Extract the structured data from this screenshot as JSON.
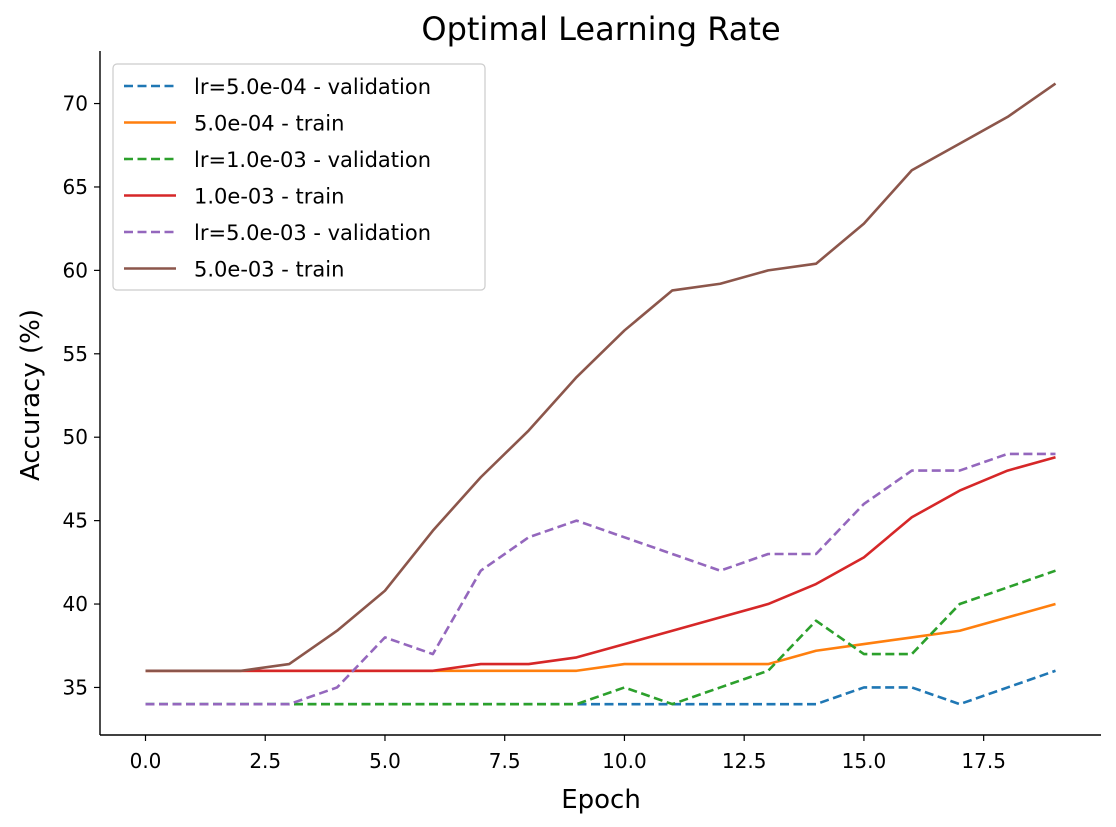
{
  "chart_data": {
    "type": "line",
    "title": "Optimal Learning Rate",
    "xlabel": "Epoch",
    "ylabel": "Accuracy (%)",
    "xlim": [
      -0.95,
      19.95
    ],
    "ylim": [
      32.15,
      73.15
    ],
    "xticks": [
      0.0,
      2.5,
      5.0,
      7.5,
      10.0,
      12.5,
      15.0,
      17.5
    ],
    "xtick_labels": [
      "0.0",
      "2.5",
      "5.0",
      "7.5",
      "10.0",
      "12.5",
      "15.0",
      "17.5"
    ],
    "yticks": [
      35,
      40,
      45,
      50,
      55,
      60,
      65,
      70
    ],
    "ytick_labels": [
      "35",
      "40",
      "45",
      "50",
      "55",
      "60",
      "65",
      "70"
    ],
    "grid": false,
    "legend_position": "upper-left",
    "x": [
      0,
      1,
      2,
      3,
      4,
      5,
      6,
      7,
      8,
      9,
      10,
      11,
      12,
      13,
      14,
      15,
      16,
      17,
      18,
      19
    ],
    "series": [
      {
        "name": "lr=5.0e-04 - validation",
        "color": "#1f77b4",
        "dash": true,
        "values": [
          34,
          34,
          34,
          34,
          34,
          34,
          34,
          34,
          34,
          34,
          34,
          34,
          34,
          34,
          34,
          35,
          35,
          34,
          35,
          36
        ]
      },
      {
        "name": "5.0e-04 - train",
        "color": "#ff7f0e",
        "dash": false,
        "values": [
          36,
          36,
          36,
          36,
          36,
          36,
          36,
          36,
          36,
          36,
          36.4,
          36.4,
          36.4,
          36.4,
          37.2,
          37.6,
          38.0,
          38.4,
          39.2,
          40.0
        ]
      },
      {
        "name": "lr=1.0e-03 - validation",
        "color": "#2ca02c",
        "dash": true,
        "values": [
          34,
          34,
          34,
          34,
          34,
          34,
          34,
          34,
          34,
          34,
          35,
          34,
          35,
          36,
          39,
          37,
          37,
          40,
          41,
          42
        ]
      },
      {
        "name": "1.0e-03 - train",
        "color": "#d62728",
        "dash": false,
        "values": [
          36,
          36,
          36,
          36,
          36,
          36,
          36,
          36.4,
          36.4,
          36.8,
          37.6,
          38.4,
          39.2,
          40.0,
          41.2,
          42.8,
          45.2,
          46.8,
          48.0,
          48.8
        ]
      },
      {
        "name": "lr=5.0e-03 - validation",
        "color": "#9467bd",
        "dash": true,
        "values": [
          34,
          34,
          34,
          34,
          35,
          38,
          37,
          42,
          44,
          45,
          44,
          43,
          42,
          43,
          43,
          46,
          48,
          48,
          49,
          49
        ]
      },
      {
        "name": "5.0e-03 - train",
        "color": "#8c564b",
        "dash": false,
        "values": [
          36,
          36,
          36,
          36.4,
          38.4,
          40.8,
          44.4,
          47.6,
          50.4,
          53.6,
          56.4,
          58.8,
          59.2,
          60.0,
          60.4,
          62.8,
          66.0,
          67.6,
          69.2,
          71.2
        ]
      }
    ]
  }
}
